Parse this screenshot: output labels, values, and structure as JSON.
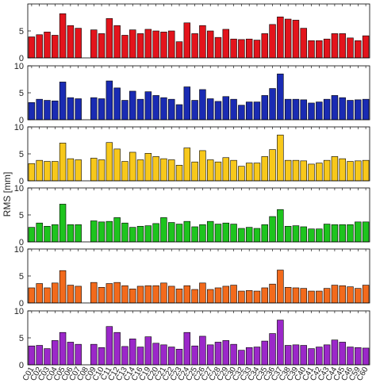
{
  "chart_data": [
    {
      "type": "bar",
      "ylabel": "RMS [mm]",
      "color": "#e3141c",
      "ylim": [
        0,
        10
      ],
      "yticks": [
        0,
        5
      ],
      "values": [
        3.9,
        4.3,
        4.8,
        4.2,
        8.2,
        6,
        5.5,
        null,
        5.2,
        4.5,
        7.3,
        6,
        4.2,
        5.2,
        4.5,
        5.3,
        5,
        4.8,
        5,
        3,
        6.5,
        4.5,
        6,
        5,
        3.8,
        5.3,
        3.5,
        3.4,
        3.5,
        3.3,
        4.5,
        6.2,
        7.6,
        7.2,
        7,
        5.5,
        3.2,
        3.2,
        3.5,
        4.5,
        4.5,
        3.7,
        3.2,
        4.1
      ]
    },
    {
      "type": "bar",
      "color": "#1a2bb3",
      "ylim": [
        0,
        10
      ],
      "yticks": [
        0,
        5,
        10
      ],
      "values": [
        3.2,
        3.8,
        3.6,
        3.5,
        7,
        4.1,
        3.9,
        null,
        4.1,
        3.9,
        7.2,
        5.9,
        3.6,
        5.3,
        3.8,
        5.2,
        4.5,
        4.1,
        3.8,
        2.8,
        6.1,
        3.6,
        5.6,
        3.9,
        3.4,
        4.3,
        3.8,
        2.7,
        3.3,
        3.3,
        4.5,
        5.8,
        8.5,
        3.8,
        3.8,
        3.7,
        3.1,
        3.3,
        3.8,
        4.5,
        4.1,
        3.6,
        3.7,
        3.8
      ]
    },
    {
      "type": "bar",
      "color": "#f7c81b",
      "ylim": [
        0,
        10
      ],
      "yticks": [
        0,
        5,
        10
      ],
      "values": [
        3.2,
        3.8,
        3.6,
        3.6,
        7,
        4.1,
        3.9,
        null,
        4.2,
        3.9,
        7.1,
        5.9,
        3.6,
        5.3,
        3.9,
        5.1,
        4.5,
        4.1,
        3.9,
        2.9,
        6.1,
        3.5,
        5.6,
        3.9,
        3.5,
        4.3,
        3.8,
        2.7,
        3.3,
        3.3,
        4.5,
        5.8,
        8.5,
        3.8,
        3.8,
        3.7,
        3.1,
        3.3,
        3.8,
        4.5,
        4.1,
        3.6,
        3.7,
        3.8
      ]
    },
    {
      "type": "bar",
      "color": "#1ec41e",
      "ylim": [
        0,
        10
      ],
      "yticks": [
        0,
        5,
        10
      ],
      "values": [
        2.7,
        3.5,
        2.9,
        3.2,
        7,
        3.2,
        3.2,
        null,
        3.9,
        3.7,
        3.8,
        4.5,
        3.5,
        2.7,
        2.9,
        3,
        3.4,
        4.5,
        3.6,
        3.3,
        3.8,
        2.8,
        3.2,
        3.8,
        3.3,
        3.5,
        3.3,
        2.5,
        2.7,
        2.5,
        3.2,
        4.7,
        6,
        2.9,
        3,
        2.8,
        2.4,
        2.4,
        3.3,
        3.2,
        3.2,
        3.2,
        3.7,
        3.7
      ]
    },
    {
      "type": "bar",
      "color": "#f26a1c",
      "ylim": [
        0,
        10
      ],
      "yticks": [
        0,
        5,
        10
      ],
      "values": [
        2.8,
        3.6,
        2.8,
        3.7,
        6,
        3.3,
        3.1,
        null,
        3.8,
        2.9,
        3.6,
        3.8,
        3.2,
        2.6,
        3.1,
        3.2,
        3.2,
        3.7,
        3.1,
        2.6,
        3.2,
        2.5,
        3.7,
        2.5,
        2.8,
        3.1,
        3.3,
        2.2,
        2.3,
        2.2,
        2.8,
        3.5,
        6.1,
        2.9,
        2.8,
        2.7,
        2.2,
        2.2,
        2.7,
        3.3,
        3.2,
        3,
        2.7,
        3.3
      ]
    },
    {
      "type": "bar",
      "color": "#9b28c9",
      "ylim": [
        0,
        10
      ],
      "yticks": [
        0,
        5,
        10
      ],
      "categories": [
        "C01",
        "C02",
        "C03",
        "C04",
        "C05",
        "C06",
        "C07",
        "C08",
        "C09",
        "C10",
        "C11",
        "C12",
        "C13",
        "C14",
        "C16",
        "C19",
        "C20",
        "C21",
        "C22",
        "C23",
        "C24",
        "C25",
        "C26",
        "C27",
        "C28",
        "C29",
        "C30",
        "C32",
        "C33",
        "C34",
        "C35",
        "C36",
        "C37",
        "C38",
        "C39",
        "C40",
        "C41",
        "C42",
        "C43",
        "C44",
        "C45",
        "C46",
        "C59",
        "C60"
      ],
      "values": [
        3.5,
        3.6,
        3,
        4.5,
        6,
        4.2,
        3.8,
        null,
        3.8,
        3.2,
        7.1,
        6,
        3.4,
        4.8,
        3.3,
        5.2,
        4,
        3.7,
        3.3,
        2.9,
        6,
        3.5,
        5.3,
        3.7,
        4.2,
        4.5,
        3.8,
        2.7,
        3.2,
        3.3,
        4.4,
        5.8,
        8.3,
        3.6,
        3.7,
        3.6,
        3,
        3.3,
        3.7,
        4.6,
        4.2,
        3.3,
        3.2,
        3.1
      ]
    }
  ]
}
